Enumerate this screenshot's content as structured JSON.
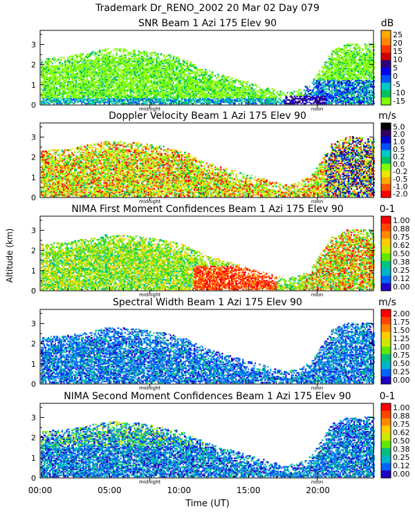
{
  "header": {
    "title": "Trademark Dr_RENO_2002  20 Mar 02 Day 079"
  },
  "shared": {
    "ylabel": "Altitude (km)",
    "xlabel": "Time (UT)",
    "x_ticks": [
      "00:00",
      "05:00",
      "10:00",
      "15:00",
      "20:00"
    ],
    "x_tick_hours": [
      0,
      5,
      10,
      15,
      20
    ],
    "y_ticks": [
      "0",
      "1",
      "2",
      "3"
    ],
    "xlim_hours": [
      0,
      24
    ],
    "ylim_km": [
      0,
      3.7
    ],
    "markers": {
      "midnight": "midnight",
      "noon": "noon"
    },
    "marker_hours": {
      "midnight": 7.9,
      "noon": 19.95
    }
  },
  "chart_data": [
    {
      "type": "heatmap",
      "title": "SNR Beam 1 Azi 175 Elev 90",
      "unit": "dB",
      "colorbar_labels": [
        "25",
        "20",
        "15",
        "10",
        "5",
        "0",
        "-5",
        "-10",
        "-15"
      ],
      "colorbar_colors": [
        "#ffaa00",
        "#ff8800",
        "#ff3300",
        "#cc0000",
        "#300080",
        "#0000ee",
        "#0050ff",
        "#00c8c8",
        "#00c060",
        "#80ff00"
      ]
    },
    {
      "type": "heatmap",
      "title": "Doppler Velocity Beam 1 Azi 175 Elev 90",
      "unit": "m/s",
      "colorbar_labels": [
        "5.0",
        "2.0",
        "1.0",
        "0.5",
        "0.2",
        "0.0",
        "-0.2",
        "-0.5",
        "-1.0",
        "-2.0"
      ],
      "colorbar_colors": [
        "#000000",
        "#300060",
        "#0000cc",
        "#0050ff",
        "#00c8c8",
        "#00c060",
        "#80ff00",
        "#e8e800",
        "#ffaa00",
        "#ff5500",
        "#ff0000"
      ]
    },
    {
      "type": "heatmap",
      "title": "NIMA First Moment Confidences Beam 1 Azi 175 Elev 90",
      "unit": "0-1",
      "colorbar_labels": [
        "1.00",
        "0.88",
        "0.75",
        "0.62",
        "0.50",
        "0.38",
        "0.25",
        "0.12",
        "0.00"
      ],
      "colorbar_colors": [
        "#ff0000",
        "#ff4400",
        "#ff8800",
        "#ffcc00",
        "#cce800",
        "#60e800",
        "#00c080",
        "#00b4c8",
        "#0064ff",
        "#2000c0"
      ]
    },
    {
      "type": "heatmap",
      "title": "Spectral Width Beam 1 Azi 175 Elev 90",
      "unit": "m/s",
      "colorbar_labels": [
        "2.00",
        "1.75",
        "1.50",
        "1.25",
        "1.00",
        "0.75",
        "0.50",
        "0.25",
        "0.00"
      ],
      "colorbar_colors": [
        "#ff0000",
        "#ff4400",
        "#ff8800",
        "#ffcc00",
        "#cce800",
        "#60e800",
        "#00c080",
        "#00b4c8",
        "#0064ff",
        "#2000c0"
      ]
    },
    {
      "type": "heatmap",
      "title": "NIMA Second Moment Confidences Beam 1 Azi 175 Elev 90",
      "unit": "0-1",
      "colorbar_labels": [
        "1.00",
        "0.88",
        "0.75",
        "0.62",
        "0.50",
        "0.38",
        "0.25",
        "0.12",
        "0.00"
      ],
      "colorbar_colors": [
        "#ff0000",
        "#ff4400",
        "#ff8800",
        "#ffcc00",
        "#cce800",
        "#60e800",
        "#00c080",
        "#00b4c8",
        "#0064ff",
        "#2000c0"
      ]
    }
  ]
}
